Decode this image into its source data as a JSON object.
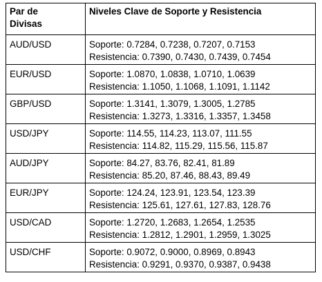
{
  "table": {
    "header": {
      "pair_line1": "Par de",
      "pair_line2": "Divisas",
      "levels": "Niveles Clave de Soporte y Resistencia"
    },
    "rows": [
      {
        "pair": "AUD/USD",
        "support": "Soporte: 0.7284, 0.7238, 0.7207, 0.7153",
        "resistance": "Resistencia: 0.7390, 0.7430, 0.7439, 0.7454"
      },
      {
        "pair": "EUR/USD",
        "support": "Soporte: 1.0870, 1.0838, 1.0710, 1.0639",
        "resistance": "Resistencia: 1.1050, 1.1068, 1.1091, 1.1142"
      },
      {
        "pair": "GBP/USD",
        "support": "Soporte: 1.3141, 1.3079, 1.3005, 1.2785",
        "resistance": "Resistencia: 1.3273, 1.3316, 1.3357, 1.3458"
      },
      {
        "pair": "USD/JPY",
        "support": "Soporte: 114.55, 114.23, 113.07, 111.55",
        "resistance": "Resistencia: 114.82, 115.29, 115.56, 115.87"
      },
      {
        "pair": "AUD/JPY",
        "support": "Soporte: 84.27, 83.76, 82.41, 81.89",
        "resistance": "Resistencia: 85.20, 87.46, 88.43, 89.49"
      },
      {
        "pair": "EUR/JPY",
        "support": "Soporte: 124.24, 123.91, 123.54, 123.39",
        "resistance": "Resistencia: 125.61, 127.61, 127.83, 128.76"
      },
      {
        "pair": "USD/CAD",
        "support": "Soporte: 1.2720, 1.2683, 1.2654, 1.2535",
        "resistance": "Resistencia: 1.2812, 1.2901, 1.2959, 1.3025"
      },
      {
        "pair": "USD/CHF",
        "support": "Soporte: 0.9072, 0.9000, 0.8969, 0.8943",
        "resistance": "Resistencia: 0.9291, 0.9370, 0.9387, 0.9438"
      }
    ]
  }
}
